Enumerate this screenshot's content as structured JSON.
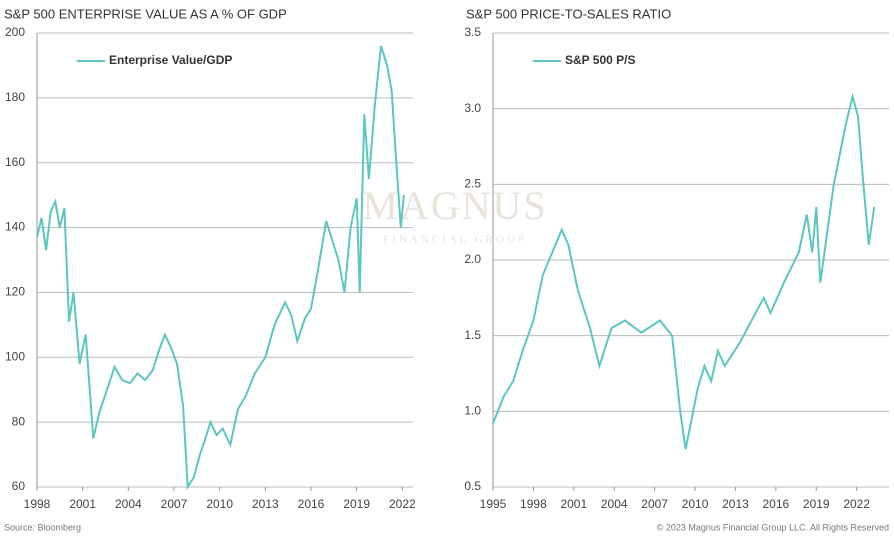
{
  "chart_data": [
    {
      "type": "line",
      "title": "S&P 500 ENTERPRISE VALUE AS A % OF GDP",
      "xlim": [
        1998,
        2022.7
      ],
      "xticks": [
        1998,
        2001,
        2004,
        2007,
        2010,
        2013,
        2016,
        2019,
        2022
      ],
      "ylim": [
        60,
        200
      ],
      "yticks": [
        60,
        80,
        100,
        120,
        140,
        160,
        180,
        200
      ],
      "grid": true,
      "legend": "upper left",
      "x": [
        1998.0,
        1998.3,
        1998.6,
        1998.9,
        1999.2,
        1999.5,
        1999.8,
        2000.1,
        2000.4,
        2000.8,
        2001.2,
        2001.7,
        2002.1,
        2002.6,
        2003.1,
        2003.6,
        2004.1,
        2004.6,
        2005.1,
        2005.6,
        2006.0,
        2006.4,
        2006.8,
        2007.2,
        2007.6,
        2007.9,
        2008.3,
        2008.7,
        2009.0,
        2009.4,
        2009.8,
        2010.2,
        2010.7,
        2011.2,
        2011.7,
        2012.3,
        2013.0,
        2013.6,
        2014.3,
        2014.7,
        2015.1,
        2015.6,
        2016.0,
        2016.5,
        2017.0,
        2017.4,
        2017.8,
        2018.2,
        2018.6,
        2019.0,
        2019.2,
        2019.5,
        2019.8,
        2020.2,
        2020.6,
        2021.0,
        2021.3,
        2021.6,
        2021.9,
        2022.1
      ],
      "series": [
        {
          "name": "Enterprise Value/GDP",
          "color": "#5cc6c0",
          "values": [
            137,
            143,
            133,
            145,
            148,
            140,
            146,
            111,
            120,
            98,
            107,
            75,
            83,
            90,
            97,
            93,
            92,
            95,
            93,
            96,
            102,
            107,
            103,
            98,
            85,
            60,
            63,
            70,
            74,
            80,
            76,
            78,
            73,
            84,
            88,
            95,
            100,
            110,
            117,
            113,
            105,
            112,
            115,
            128,
            142,
            136,
            130,
            120,
            140,
            149,
            120,
            175,
            155,
            178,
            196,
            190,
            182,
            160,
            140,
            150
          ]
        }
      ]
    },
    {
      "type": "line",
      "title": "S&P 500 PRICE-TO-SALES RATIO",
      "xlim": [
        1995,
        2024.4
      ],
      "xticks": [
        1995,
        1998,
        2001,
        2004,
        2007,
        2010,
        2013,
        2016,
        2019,
        2022
      ],
      "ylim": [
        0.5,
        3.5
      ],
      "yticks": [
        0.5,
        {
          "value": 1.0,
          "label": "1.0"
        },
        1.5,
        {
          "value": 2.0,
          "label": "2.0"
        },
        2.5,
        {
          "value": 3.0,
          "label": "3.0"
        },
        3.5
      ],
      "grid": true,
      "legend": "upper left",
      "x": [
        1995.0,
        1995.8,
        1996.5,
        1997.2,
        1998.0,
        1998.7,
        1999.4,
        2000.1,
        2000.6,
        2001.3,
        2002.2,
        2002.9,
        2003.8,
        2004.8,
        2006.0,
        2007.4,
        2008.3,
        2008.9,
        2009.3,
        2010.2,
        2010.7,
        2011.2,
        2011.7,
        2012.2,
        2013.3,
        2014.2,
        2015.1,
        2015.6,
        2016.6,
        2017.7,
        2018.3,
        2018.7,
        2019.0,
        2019.3,
        2020.3,
        2021.2,
        2021.7,
        2022.1,
        2022.5,
        2022.9,
        2023.3
      ],
      "series": [
        {
          "name": "S&P 500 P/S",
          "color": "#5cc6c0",
          "values": [
            0.92,
            1.1,
            1.2,
            1.4,
            1.6,
            1.9,
            2.05,
            2.2,
            2.1,
            1.8,
            1.55,
            1.3,
            1.55,
            1.6,
            1.52,
            1.6,
            1.5,
            1.0,
            0.75,
            1.15,
            1.3,
            1.2,
            1.4,
            1.3,
            1.45,
            1.6,
            1.75,
            1.65,
            1.85,
            2.05,
            2.3,
            2.05,
            2.35,
            1.85,
            2.5,
            2.9,
            3.08,
            2.95,
            2.5,
            2.1,
            2.35
          ]
        }
      ]
    }
  ],
  "watermark": {
    "name": "MAGNUS",
    "tagline": "FINANCIAL GROUP"
  },
  "source": "Source: Bloomberg",
  "copyright": "© 2023 Magnus Financial Group LLC. All Rights Reserved"
}
